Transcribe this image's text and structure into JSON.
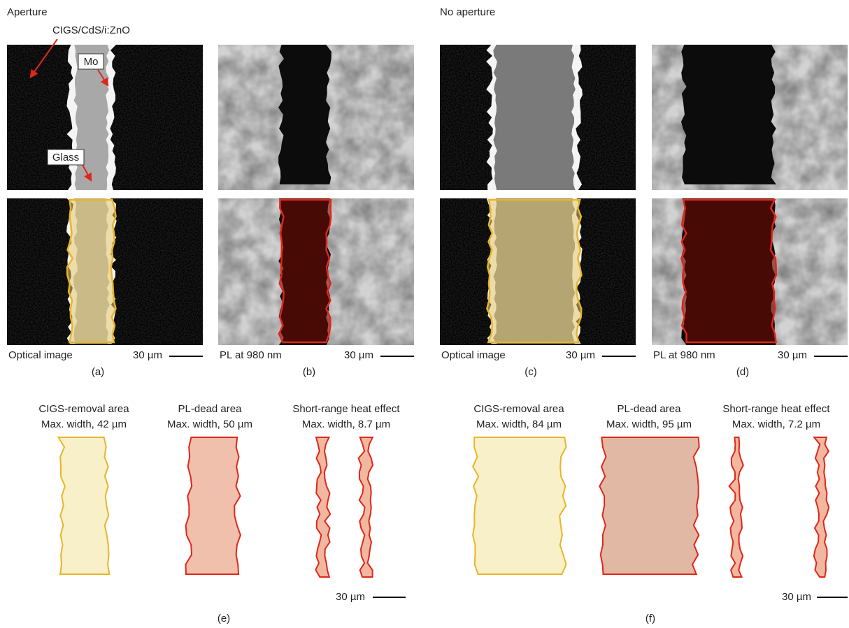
{
  "sections": [
    {
      "title": "Aperture",
      "annotations": [
        "CIGS/CdS/i:ZnO",
        "Mo",
        "Glass"
      ],
      "panels": [
        {
          "caption": "Optical image",
          "scale": "30 µm",
          "label": "(a)"
        },
        {
          "caption": "PL at 980 nm",
          "scale": "30 µm",
          "label": "(b)"
        }
      ]
    },
    {
      "title": "No aperture",
      "panels": [
        {
          "caption": "Optical image",
          "scale": "30 µm",
          "label": "(c)"
        },
        {
          "caption": "PL at 980 nm",
          "scale": "30 µm",
          "label": "(d)"
        }
      ]
    }
  ],
  "outlines": [
    {
      "label": "(e)",
      "scale": "30 µm",
      "areas": [
        {
          "name": "CIGS-removal area",
          "width": "Max. width, 42 µm"
        },
        {
          "name": "PL-dead area",
          "width": "Max. width, 50 µm"
        },
        {
          "name": "Short-range heat effect",
          "width": "Max. width, 8.7 µm"
        }
      ]
    },
    {
      "label": "(f)",
      "scale": "30 µm",
      "areas": [
        {
          "name": "CIGS-removal area",
          "width": "Max. width, 84 µm"
        },
        {
          "name": "PL-dead area",
          "width": "Max. width, 95 µm"
        },
        {
          "name": "Short-range heat effect",
          "width": "Max. width, 7.2 µm"
        }
      ]
    }
  ]
}
